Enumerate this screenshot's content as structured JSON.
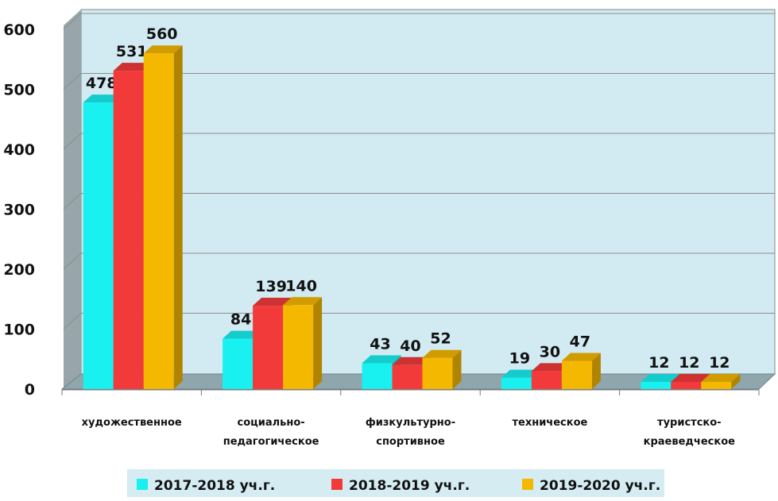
{
  "chart_data": {
    "type": "bar",
    "title": "",
    "xlabel": "",
    "ylabel": "",
    "ylim": [
      0,
      600
    ],
    "yticks": [
      0,
      100,
      200,
      300,
      400,
      500,
      600
    ],
    "categories": [
      [
        "художественное"
      ],
      [
        "социально-",
        "педагогическое"
      ],
      [
        "физкультурно-",
        "спортивное"
      ],
      [
        "техническое"
      ],
      [
        "туристско-",
        "краеведческое"
      ]
    ],
    "series": [
      {
        "name": "2017-2018 уч.г.",
        "color": "#19f0f0",
        "values": [
          478,
          84,
          43,
          19,
          12
        ]
      },
      {
        "name": "2018-2019 уч.г.",
        "color": "#f23a3a",
        "values": [
          531,
          139,
          40,
          30,
          12
        ]
      },
      {
        "name": "2019-2020 уч.г.",
        "color": "#f5b800",
        "values": [
          560,
          140,
          52,
          47,
          12
        ]
      }
    ],
    "grid": true,
    "legend_position": "bottom",
    "colors": {
      "wall": "#d2eaf1",
      "side_wall": "#98a6ab",
      "floor": "#8fa6ad",
      "gridline": "#8c8c8c",
      "legend_bg": "#d4ecf2"
    }
  }
}
